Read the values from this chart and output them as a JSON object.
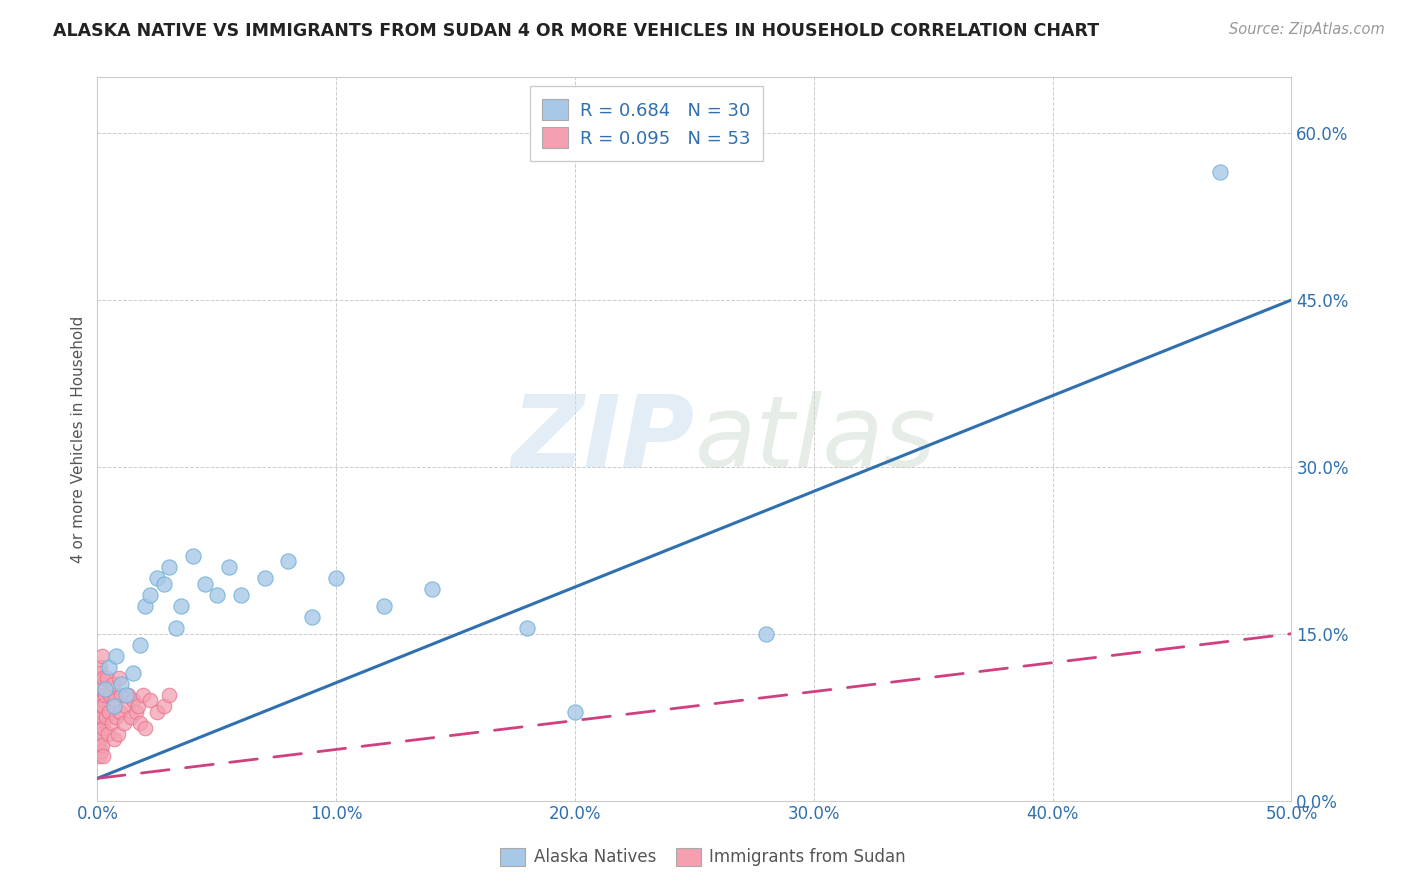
{
  "title": "ALASKA NATIVE VS IMMIGRANTS FROM SUDAN 4 OR MORE VEHICLES IN HOUSEHOLD CORRELATION CHART",
  "source": "Source: ZipAtlas.com",
  "ylabel": "4 or more Vehicles in Household",
  "xlim": [
    0.0,
    0.5
  ],
  "ylim": [
    0.0,
    0.65
  ],
  "blue_fill": "#a8c8e8",
  "blue_edge": "#6baed6",
  "pink_fill": "#f4a0b0",
  "pink_edge": "#e87090",
  "blue_line_color": "#3070b0",
  "pink_line_color": "#d04080",
  "tick_color": "#3070b0",
  "watermark_text": "ZIPatlas",
  "blue_R": 0.684,
  "blue_N": 30,
  "pink_R": 0.095,
  "pink_N": 53,
  "alaska_x": [
    0.003,
    0.005,
    0.007,
    0.008,
    0.01,
    0.012,
    0.015,
    0.018,
    0.02,
    0.022,
    0.025,
    0.028,
    0.03,
    0.033,
    0.035,
    0.04,
    0.045,
    0.05,
    0.055,
    0.06,
    0.07,
    0.08,
    0.09,
    0.1,
    0.12,
    0.14,
    0.18,
    0.2,
    0.28,
    0.47
  ],
  "alaska_y": [
    0.1,
    0.12,
    0.085,
    0.13,
    0.105,
    0.095,
    0.115,
    0.14,
    0.175,
    0.185,
    0.2,
    0.195,
    0.21,
    0.155,
    0.175,
    0.22,
    0.195,
    0.185,
    0.21,
    0.185,
    0.2,
    0.215,
    0.165,
    0.2,
    0.175,
    0.19,
    0.155,
    0.08,
    0.15,
    0.565
  ],
  "sudan_x": [
    0.0002,
    0.0003,
    0.0004,
    0.0005,
    0.0006,
    0.0007,
    0.0008,
    0.0009,
    0.001,
    0.0011,
    0.0012,
    0.0013,
    0.0014,
    0.0015,
    0.0016,
    0.0017,
    0.0018,
    0.0019,
    0.002,
    0.0021,
    0.0022,
    0.0023,
    0.0024,
    0.0025,
    0.003,
    0.0035,
    0.004,
    0.0045,
    0.005,
    0.0055,
    0.006,
    0.0065,
    0.007,
    0.0075,
    0.008,
    0.0085,
    0.009,
    0.0095,
    0.01,
    0.011,
    0.012,
    0.013,
    0.014,
    0.015,
    0.016,
    0.017,
    0.018,
    0.019,
    0.02,
    0.022,
    0.025,
    0.028,
    0.03
  ],
  "sudan_y": [
    0.05,
    0.08,
    0.11,
    0.065,
    0.09,
    0.04,
    0.075,
    0.12,
    0.055,
    0.095,
    0.07,
    0.115,
    0.045,
    0.085,
    0.1,
    0.06,
    0.13,
    0.075,
    0.09,
    0.05,
    0.11,
    0.065,
    0.085,
    0.04,
    0.095,
    0.075,
    0.11,
    0.06,
    0.08,
    0.095,
    0.07,
    0.105,
    0.055,
    0.09,
    0.075,
    0.06,
    0.11,
    0.08,
    0.095,
    0.07,
    0.085,
    0.095,
    0.075,
    0.09,
    0.08,
    0.085,
    0.07,
    0.095,
    0.065,
    0.09,
    0.08,
    0.085,
    0.095
  ],
  "background_color": "#ffffff",
  "grid_color": "#cccccc"
}
